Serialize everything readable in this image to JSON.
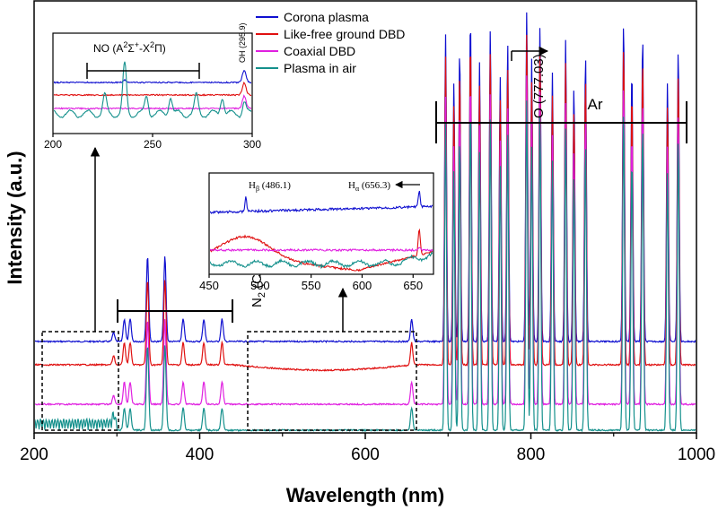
{
  "chart_data": {
    "type": "line",
    "xlabel": "Wavelength (nm)",
    "ylabel": "Intensity (a.u.)",
    "xlim": [
      200,
      1000
    ],
    "xticks": [
      200,
      400,
      600,
      800,
      1000
    ],
    "legend": {
      "placement": "top-center",
      "entries": [
        "Corona plasma",
        "Like-free ground DBD",
        "Coaxial DBD",
        "Plasma in air"
      ]
    },
    "series": [
      {
        "name": "Corona plasma",
        "color": "#1010d0",
        "baseline": 1.0
      },
      {
        "name": "Like-free ground DBD",
        "color": "#e01010",
        "baseline": 0.74
      },
      {
        "name": "Coaxial DBD",
        "color": "#e020e0",
        "baseline": 0.46
      },
      {
        "name": "Plasma in air",
        "color": "#14908c",
        "baseline": 0.2
      }
    ],
    "peaks_nm": [
      296,
      309,
      316,
      337,
      358,
      380,
      405,
      427,
      656,
      697,
      707,
      714,
      727,
      738,
      751,
      763,
      772,
      795,
      801,
      811,
      826,
      842,
      852,
      866,
      912,
      922,
      935,
      965,
      978
    ],
    "annotations": {
      "n2_band": "N2 (C3Πu–B3Πg)",
      "n2_band_range_nm": [
        300,
        445
      ],
      "ar_label": "Ar",
      "ar_range_nm": [
        686,
        990
      ],
      "o_label": "O (777.03)"
    },
    "inset_uv": {
      "xlim": [
        200,
        300
      ],
      "xticks": [
        200,
        250,
        300
      ],
      "band_label": "NO (A2Σ+-X2Π)",
      "band_range_nm": [
        215,
        275
      ],
      "oh_label": "OH (295.9)"
    },
    "inset_visible": {
      "xlim": [
        450,
        670
      ],
      "xticks": [
        450,
        500,
        550,
        600,
        650
      ],
      "h_beta_label": "Hβ (486.1)",
      "h_alpha_label": "Hα (656.3)"
    }
  }
}
